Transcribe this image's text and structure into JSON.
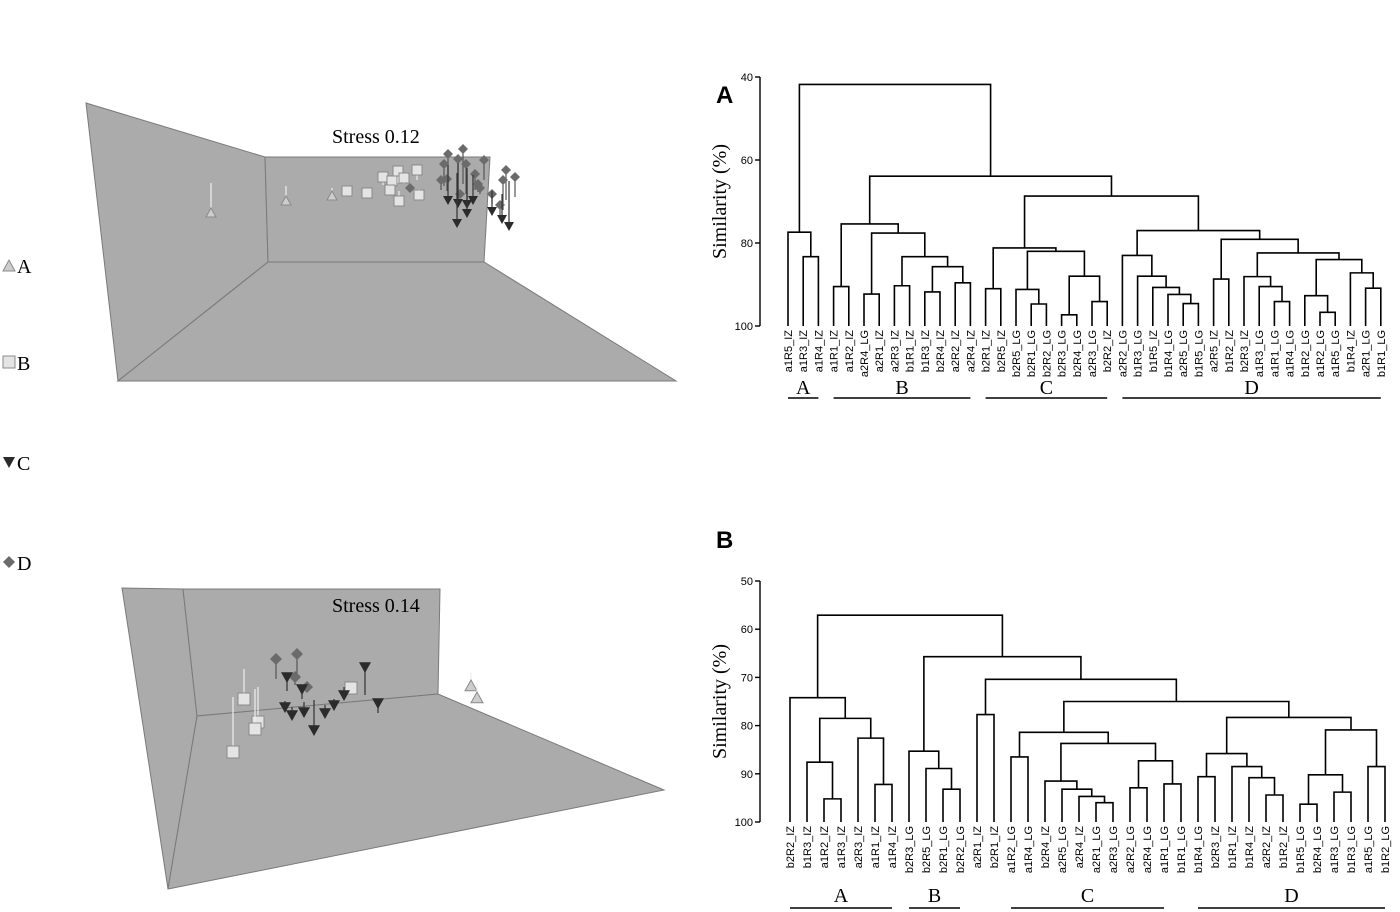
{
  "legend": [
    {
      "label": "A",
      "marker": "triangle-up",
      "color": "#cdcdcd"
    },
    {
      "label": "B",
      "marker": "square",
      "color": "#e4e4e4"
    },
    {
      "label": "C",
      "marker": "triangle-down",
      "color": "#2b2b2b"
    },
    {
      "label": "D",
      "marker": "diamond",
      "color": "#6b6b6b"
    }
  ],
  "mds": [
    {
      "stress_label": "Stress 0.12"
    },
    {
      "stress_label": "Stress 0.14"
    }
  ],
  "chart_data": [
    {
      "type": "dendrogram",
      "panel": "A",
      "ylabel": "Similarity (%)",
      "ylim": [
        40,
        100
      ],
      "yticks": [
        40,
        60,
        80,
        100
      ],
      "leaves": [
        "a1R5_IZ",
        "a1R3_IZ",
        "a1R4_IZ",
        "a1R1_IZ",
        "a1R2_IZ",
        "a2R4_LG",
        "a2R1_IZ",
        "a2R3_IZ",
        "b1R1_IZ",
        "b1R3_IZ",
        "b2R4_IZ",
        "a2R2_IZ",
        "a2R4_IZ",
        "b2R1_IZ",
        "b2R5_IZ",
        "b2R5_LG",
        "b2R1_LG",
        "b2R2_LG",
        "b2R3_LG",
        "b2R4_LG",
        "a2R3_LG",
        "b2R2_IZ",
        "a2R2_LG",
        "b1R3_LG",
        "b1R5_IZ",
        "b1R4_LG",
        "a2R5_LG",
        "b1R5_LG",
        "a2R5_IZ",
        "b1R2_IZ",
        "b2R3_IZ",
        "a1R3_LG",
        "a1R1_LG",
        "a1R4_LG",
        "b1R2_LG",
        "a1R2_LG",
        "a1R5_LG",
        "b1R4_IZ",
        "a2R1_LG",
        "b1R1_LG"
      ],
      "groups": [
        {
          "label": "A",
          "from": 0,
          "to": 2
        },
        {
          "label": "B",
          "from": 3,
          "to": 12
        },
        {
          "label": "C",
          "from": 13,
          "to": 21
        },
        {
          "label": "D",
          "from": 22,
          "to": 39
        }
      ],
      "tree": {
        "h": 41.8,
        "c": [
          {
            "h": 77.4,
            "c": [
              0,
              {
                "h": 83.3,
                "c": [
                  1,
                  2
                ]
              }
            ]
          },
          {
            "h": 63.9,
            "c": [
              {
                "h": 75.4,
                "c": [
                  {
                    "h": 90.5,
                    "c": [
                      3,
                      4
                    ]
                  },
                  {
                    "h": 77.6,
                    "c": [
                      {
                        "h": 92.3,
                        "c": [
                          5,
                          6
                        ]
                      },
                      {
                        "h": 83.3,
                        "c": [
                          {
                            "h": 90.3,
                            "c": [
                              7,
                              8
                            ]
                          },
                          {
                            "h": 85.7,
                            "c": [
                              {
                                "h": 91.8,
                                "c": [
                                  9,
                                  10
                                ]
                              },
                              {
                                "h": 89.6,
                                "c": [
                                  11,
                                  12
                                ]
                              }
                            ]
                          }
                        ]
                      }
                    ]
                  }
                ]
              },
              {
                "h": 68.7,
                "c": [
                  {
                    "h": 81.2,
                    "c": [
                      {
                        "h": 91.0,
                        "c": [
                          13,
                          14
                        ]
                      },
                      {
                        "h": 82.0,
                        "c": [
                          {
                            "h": 91.2,
                            "c": [
                              15,
                              {
                                "h": 94.7,
                                "c": [
                                  16,
                                  17
                                ]
                              }
                            ]
                          },
                          {
                            "h": 88.0,
                            "c": [
                              {
                                "h": 97.3,
                                "c": [
                                  18,
                                  19
                                ]
                              },
                              {
                                "h": 94.1,
                                "c": [
                                  20,
                                  21
                                ]
                              }
                            ]
                          }
                        ]
                      }
                    ]
                  },
                  {
                    "h": 77.0,
                    "c": [
                      {
                        "h": 83.0,
                        "c": [
                          22,
                          {
                            "h": 88.0,
                            "c": [
                              23,
                              {
                                "h": 90.7,
                                "c": [
                                  24,
                                  {
                                    "h": 92.4,
                                    "c": [
                                      25,
                                      {
                                        "h": 94.6,
                                        "c": [
                                          26,
                                          27
                                        ]
                                      }
                                    ]
                                  }
                                ]
                              }
                            ]
                          }
                        ]
                      },
                      {
                        "h": 79.1,
                        "c": [
                          {
                            "h": 88.7,
                            "c": [
                              28,
                              29
                            ]
                          },
                          {
                            "h": 82.4,
                            "c": [
                              {
                                "h": 88.1,
                                "c": [
                                  30,
                                  {
                                    "h": 90.5,
                                    "c": [
                                      31,
                                      {
                                        "h": 94.1,
                                        "c": [
                                          32,
                                          33
                                        ]
                                      }
                                    ]
                                  }
                                ]
                              },
                              {
                                "h": 84.0,
                                "c": [
                                  {
                                    "h": 92.7,
                                    "c": [
                                      34,
                                      {
                                        "h": 96.7,
                                        "c": [
                                          35,
                                          36
                                        ]
                                      }
                                    ]
                                  },
                                  {
                                    "h": 87.2,
                                    "c": [
                                      37,
                                      {
                                        "h": 90.9,
                                        "c": [
                                          38,
                                          39
                                        ]
                                      }
                                    ]
                                  }
                                ]
                              }
                            ]
                          }
                        ]
                      }
                    ]
                  }
                ]
              }
            ]
          }
        ]
      }
    },
    {
      "type": "dendrogram",
      "panel": "B",
      "ylabel": "Similarity (%)",
      "ylim": [
        50,
        100
      ],
      "yticks": [
        50,
        60,
        70,
        80,
        90,
        100
      ],
      "leaves": [
        "b2R2_IZ",
        "b1R3_IZ",
        "a1R2_IZ",
        "a1R3_IZ",
        "a2R3_IZ",
        "a1R1_IZ",
        "a1R4_IZ",
        "b2R3_LG",
        "b2R5_LG",
        "b2R1_LG",
        "b2R2_LG",
        "a2R1_IZ",
        "b2R1_IZ",
        "a1R2_LG",
        "a1R4_LG",
        "b2R4_IZ",
        "a2R5_LG",
        "a2R4_IZ",
        "a2R1_LG",
        "a2R3_LG",
        "a2R2_LG",
        "a2R4_LG",
        "a1R1_LG",
        "b1R1_LG",
        "b1R4_LG",
        "b2R3_IZ",
        "b1R1_IZ",
        "b1R4_IZ",
        "a2R2_IZ",
        "b1R2_IZ",
        "b1R5_LG",
        "b2R4_LG",
        "a1R3_LG",
        "b1R3_LG",
        "a1R5_LG",
        "b1R2_LG"
      ],
      "groups": [
        {
          "label": "A",
          "from": 0,
          "to": 6
        },
        {
          "label": "B",
          "from": 7,
          "to": 10
        },
        {
          "label": "C",
          "from": 13,
          "to": 22
        },
        {
          "label": "D",
          "from": 24,
          "to": 35
        }
      ],
      "tree": {
        "h": 57.1,
        "c": [
          {
            "h": 74.2,
            "c": [
              0,
              {
                "h": 78.5,
                "c": [
                  {
                    "h": 87.6,
                    "c": [
                      1,
                      {
                        "h": 95.2,
                        "c": [
                          2,
                          3
                        ]
                      }
                    ]
                  },
                  {
                    "h": 82.6,
                    "c": [
                      4,
                      {
                        "h": 92.2,
                        "c": [
                          5,
                          6
                        ]
                      }
                    ]
                  }
                ]
              }
            ]
          },
          {
            "h": 65.7,
            "c": [
              {
                "h": 85.3,
                "c": [
                  7,
                  {
                    "h": 88.9,
                    "c": [
                      8,
                      {
                        "h": 93.2,
                        "c": [
                          9,
                          10
                        ]
                      }
                    ]
                  }
                ]
              },
              {
                "h": 70.4,
                "c": [
                  {
                    "h": 77.7,
                    "c": [
                      11,
                      12
                    ]
                  },
                  {
                    "h": 75.0,
                    "c": [
                      {
                        "h": 81.4,
                        "c": [
                          {
                            "h": 86.5,
                            "c": [
                              13,
                              14
                            ]
                          },
                          {
                            "h": 83.7,
                            "c": [
                              {
                                "h": 91.5,
                                "c": [
                                  15,
                                  {
                                    "h": 93.2,
                                    "c": [
                                      16,
                                      {
                                        "h": 94.7,
                                        "c": [
                                          17,
                                          {
                                            "h": 96.0,
                                            "c": [
                                              18,
                                              19
                                            ]
                                          }
                                        ]
                                      }
                                    ]
                                  }
                                ]
                              },
                              {
                                "h": 87.3,
                                "c": [
                                  {
                                    "h": 92.9,
                                    "c": [
                                      20,
                                      21
                                    ]
                                  },
                                  {
                                    "h": 92.1,
                                    "c": [
                                      22,
                                      23
                                    ]
                                  }
                                ]
                              }
                            ]
                          }
                        ]
                      },
                      {
                        "h": 78.3,
                        "c": [
                          {
                            "h": 85.8,
                            "c": [
                              {
                                "h": 90.6,
                                "c": [
                                  24,
                                  25
                                ]
                              },
                              {
                                "h": 88.5,
                                "c": [
                                  26,
                                  {
                                    "h": 90.8,
                                    "c": [
                                      27,
                                      {
                                        "h": 94.4,
                                        "c": [
                                          28,
                                          29
                                        ]
                                      }
                                    ]
                                  }
                                ]
                              }
                            ]
                          },
                          {
                            "h": 80.9,
                            "c": [
                              {
                                "h": 90.2,
                                "c": [
                                  {
                                    "h": 96.3,
                                    "c": [
                                      30,
                                      31
                                    ]
                                  },
                                  {
                                    "h": 93.8,
                                    "c": [
                                      32,
                                      33
                                    ]
                                  }
                                ]
                              },
                              {
                                "h": 88.5,
                                "c": [
                                  34,
                                  35
                                ]
                              }
                            ]
                          }
                        ]
                      }
                    ]
                  }
                ]
              }
            ]
          }
        ]
      }
    }
  ]
}
